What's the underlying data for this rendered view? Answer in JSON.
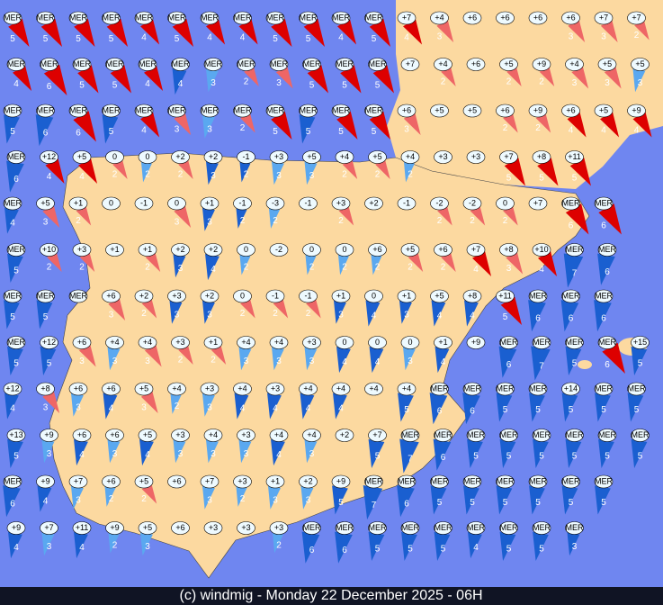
{
  "map": {
    "footer": "(c) windmig - Monday 22 December 2025 - 06H",
    "stations": [
      [
        [
          "MER",
          5,
          "#d00"
        ],
        [
          "MER",
          5,
          "#d00"
        ],
        [
          "MER",
          5,
          "#d00"
        ],
        [
          "MER",
          5,
          "#d00"
        ],
        [
          "MER",
          4,
          "#d00"
        ],
        [
          "MER",
          5,
          "#d00"
        ],
        [
          "MER",
          4,
          "#d00"
        ],
        [
          "MER",
          4,
          "#d00"
        ],
        [
          "MER",
          5,
          "#d00"
        ],
        [
          "MER",
          5,
          "#d00"
        ],
        [
          "MER",
          4,
          "#d00"
        ],
        [
          "MER",
          5,
          "#d00"
        ],
        [
          "+7",
          4,
          "#d00"
        ],
        [
          "+4",
          3,
          "#e66"
        ],
        [
          "+6"
        ],
        [
          "+6"
        ],
        [
          "+6"
        ],
        [
          "+6",
          3,
          "#e66"
        ],
        [
          "+7",
          3,
          "#e66"
        ],
        [
          "+7",
          2,
          "#e66"
        ]
      ],
      [
        [
          "MER",
          4,
          "#d00"
        ],
        [
          "MER",
          6,
          "#d00"
        ],
        [
          "MER",
          5,
          "#d00"
        ],
        [
          "MER",
          5,
          "#d00"
        ],
        [
          "MER",
          4,
          "#d00"
        ],
        [
          "MER",
          4,
          "#1a5fd0"
        ],
        [
          "MER",
          3,
          "#5aa8f0"
        ],
        [
          "MER",
          2,
          "#e66"
        ],
        [
          "MER",
          3,
          "#e66"
        ],
        [
          "MER",
          5,
          "#d00"
        ],
        [
          "MER",
          5,
          "#d00"
        ],
        [
          "MER",
          5,
          "#d00"
        ],
        [
          "+7"
        ],
        [
          "+4",
          2,
          "#e66"
        ],
        [
          "+6"
        ],
        [
          "+5",
          2,
          "#e66"
        ],
        [
          "+9",
          2,
          "#e66"
        ],
        [
          "+4",
          3,
          "#e66"
        ],
        [
          "+5",
          3,
          "#e66"
        ],
        [
          "+5",
          3,
          "#5aa8f0"
        ]
      ],
      [
        [
          "MER",
          5,
          "#1a5fd0"
        ],
        [
          "MER",
          6,
          "#1a5fd0"
        ],
        [
          "MER",
          6,
          "#d00"
        ],
        [
          "MER",
          5,
          "#1a5fd0"
        ],
        [
          "MER",
          4,
          "#d00"
        ],
        [
          "MER",
          3,
          "#e66"
        ],
        [
          "MER",
          3,
          "#5aa8f0"
        ],
        [
          "MER",
          2,
          "#e66"
        ],
        [
          "MER",
          5,
          "#d00"
        ],
        [
          "MER",
          5,
          "#1a5fd0"
        ],
        [
          "MER",
          5,
          "#d00"
        ],
        [
          "MER",
          5,
          "#d00"
        ],
        [
          "+6",
          3,
          "#e66"
        ],
        [
          "+5"
        ],
        [
          "+5"
        ],
        [
          "+6",
          2,
          "#e66"
        ],
        [
          "+9",
          2,
          "#e66"
        ],
        [
          "+6",
          4,
          "#d00"
        ],
        [
          "+5",
          4,
          "#d00"
        ],
        [
          "+9",
          4,
          "#d00"
        ]
      ],
      [
        [
          "MER",
          6,
          "#1a5fd0"
        ],
        [
          "+12",
          4,
          "#d00"
        ],
        [
          "+5",
          4,
          "#d00"
        ],
        [
          "0",
          2,
          "#e66"
        ],
        [
          "0",
          2,
          "#5aa8f0"
        ],
        [
          "+2",
          2,
          "#e66"
        ],
        [
          "+2",
          3,
          "#1a5fd0"
        ],
        [
          "-1",
          2,
          "#1a5fd0"
        ],
        [
          "+3",
          3,
          "#5aa8f0"
        ],
        [
          "+5",
          3,
          "#5aa8f0"
        ],
        [
          "+4",
          2,
          "#e66"
        ],
        [
          "+5",
          2,
          "#e66"
        ],
        [
          "+4",
          2,
          "#5aa8f0"
        ],
        [
          "+3"
        ],
        [
          "+3"
        ],
        [
          "+7",
          5,
          "#d00"
        ],
        [
          "+8",
          5,
          "#d00"
        ],
        [
          "+11",
          5,
          "#d00"
        ]
      ],
      [
        [
          "MER",
          4,
          "#1a5fd0"
        ],
        [
          "+5",
          3,
          "#e66"
        ],
        [
          "+1",
          2,
          "#e66"
        ],
        [
          "0"
        ],
        [
          "-1"
        ],
        [
          "0",
          3,
          "#e66"
        ],
        [
          "+1",
          3,
          "#1a5fd0"
        ],
        [
          "-1",
          2,
          "#1a5fd0"
        ],
        [
          "-3",
          2,
          "#5aa8f0"
        ],
        [
          "-1"
        ],
        [
          "+3",
          2,
          "#e66"
        ],
        [
          "+2"
        ],
        [
          "-1"
        ],
        [
          "-2",
          2,
          "#e66"
        ],
        [
          "-2",
          2,
          "#e66"
        ],
        [
          "0",
          2,
          "#e66"
        ],
        [
          "+7"
        ],
        [
          "MER",
          6,
          "#d00"
        ],
        [
          "MER",
          6,
          "#d00"
        ]
      ],
      [
        [
          "MER",
          5,
          "#1a5fd0"
        ],
        [
          "+10",
          2,
          "#e66"
        ],
        [
          "+3",
          2,
          "#e66"
        ],
        [
          "+1"
        ],
        [
          "+1",
          2,
          "#e66"
        ],
        [
          "+2",
          3,
          "#1a5fd0"
        ],
        [
          "+2",
          4,
          "#1a5fd0"
        ],
        [
          "0",
          2,
          "#5aa8f0"
        ],
        [
          "-2"
        ],
        [
          "0",
          2,
          "#5aa8f0"
        ],
        [
          "0",
          2,
          "#5aa8f0"
        ],
        [
          "+6",
          2,
          "#5aa8f0"
        ],
        [
          "+5",
          2,
          "#e66"
        ],
        [
          "+6",
          2,
          "#e66"
        ],
        [
          "+7",
          4,
          "#d00"
        ],
        [
          "+8",
          3,
          "#e66"
        ],
        [
          "+10",
          4,
          "#d00"
        ],
        [
          "MER",
          7,
          "#1a5fd0"
        ],
        [
          "MER",
          6,
          "#1a5fd0"
        ]
      ],
      [
        [
          "MER",
          5,
          "#1a5fd0"
        ],
        [
          "MER",
          5,
          "#1a5fd0"
        ],
        [
          "MER"
        ],
        [
          "+6",
          3,
          "#e66"
        ],
        [
          "+2",
          2,
          "#e66"
        ],
        [
          "+3",
          3,
          "#1a5fd0"
        ],
        [
          "+2",
          3,
          "#1a5fd0"
        ],
        [
          "0",
          2,
          "#e66"
        ],
        [
          "-1",
          2,
          "#e66"
        ],
        [
          "-1",
          2,
          "#e66"
        ],
        [
          "+1",
          3,
          "#1a5fd0"
        ],
        [
          "0",
          4,
          "#1a5fd0"
        ],
        [
          "+1",
          3,
          "#1a5fd0"
        ],
        [
          "+5",
          4,
          "#1a5fd0"
        ],
        [
          "+8",
          4,
          "#1a5fd0"
        ],
        [
          "+11",
          5,
          "#d00"
        ],
        [
          "MER",
          6,
          "#1a5fd0"
        ],
        [
          "MER",
          6,
          "#1a5fd0"
        ],
        [
          "MER",
          6,
          "#1a5fd0"
        ]
      ],
      [
        [
          "MER",
          5,
          "#1a5fd0"
        ],
        [
          "+12",
          5,
          "#1a5fd0"
        ],
        [
          "+6",
          3,
          "#e66"
        ],
        [
          "+4",
          3,
          "#5aa8f0"
        ],
        [
          "+4",
          3,
          "#e66"
        ],
        [
          "+3",
          2,
          "#e66"
        ],
        [
          "+1",
          2,
          "#e66"
        ],
        [
          "+4",
          3,
          "#5aa8f0"
        ],
        [
          "+4",
          3,
          "#5aa8f0"
        ],
        [
          "+3",
          3,
          "#5aa8f0"
        ],
        [
          "0",
          4,
          "#1a5fd0"
        ],
        [
          "0",
          4,
          "#1a5fd0"
        ],
        [
          "0",
          3,
          "#5aa8f0"
        ],
        [
          "+1",
          4,
          "#1a5fd0"
        ],
        [
          "+9"
        ],
        [
          "MER",
          6,
          "#1a5fd0"
        ],
        [
          "MER",
          7,
          "#1a5fd0"
        ],
        [
          "MER",
          5,
          "#1a5fd0"
        ],
        [
          "MER",
          6,
          "#d00"
        ],
        [
          "+15",
          5,
          "#1a5fd0"
        ]
      ],
      [
        [
          "+12",
          4,
          "#1a5fd0"
        ],
        [
          "+8",
          3,
          "#e66"
        ],
        [
          "+6",
          3,
          "#5aa8f0"
        ],
        [
          "+6",
          4,
          "#1a5fd0"
        ],
        [
          "+5",
          3,
          "#e66"
        ],
        [
          "+4",
          2,
          "#5aa8f0"
        ],
        [
          "+3",
          3,
          "#5aa8f0"
        ],
        [
          "+4",
          4,
          "#1a5fd0"
        ],
        [
          "+3",
          4,
          "#1a5fd0"
        ],
        [
          "+4",
          4,
          "#1a5fd0"
        ],
        [
          "+4",
          4,
          "#1a5fd0"
        ],
        [
          "+4"
        ],
        [
          "+4",
          5,
          "#1a5fd0"
        ],
        [
          "MER",
          6,
          "#1a5fd0"
        ],
        [
          "MER",
          6,
          "#1a5fd0"
        ],
        [
          "MER",
          5,
          "#1a5fd0"
        ],
        [
          "MER",
          5,
          "#1a5fd0"
        ],
        [
          "+14",
          5,
          "#1a5fd0"
        ],
        [
          "MER",
          5,
          "#1a5fd0"
        ],
        [
          "MER",
          5,
          "#1a5fd0"
        ]
      ],
      [
        [
          "+13",
          5,
          "#1a5fd0"
        ],
        [
          "+9",
          3,
          "#5aa8f0"
        ],
        [
          "+6",
          4,
          "#1a5fd0"
        ],
        [
          "+6",
          3,
          "#5aa8f0"
        ],
        [
          "+5",
          4,
          "#1a5fd0"
        ],
        [
          "+3",
          3,
          "#5aa8f0"
        ],
        [
          "+4",
          3,
          "#5aa8f0"
        ],
        [
          "+3",
          3,
          "#5aa8f0"
        ],
        [
          "+4",
          4,
          "#1a5fd0"
        ],
        [
          "+4",
          3,
          "#5aa8f0"
        ],
        [
          "+2"
        ],
        [
          "+7",
          5,
          "#1a5fd0"
        ],
        [
          "MER",
          7,
          "#1a5fd0"
        ],
        [
          "MER",
          6,
          "#1a5fd0"
        ],
        [
          "MER",
          5,
          "#1a5fd0"
        ],
        [
          "MER",
          5,
          "#1a5fd0"
        ],
        [
          "MER",
          5,
          "#1a5fd0"
        ],
        [
          "MER",
          5,
          "#1a5fd0"
        ],
        [
          "MER",
          5,
          "#1a5fd0"
        ],
        [
          "MER",
          5,
          "#1a5fd0"
        ]
      ],
      [
        [
          "MER",
          6,
          "#1a5fd0"
        ],
        [
          "+9",
          4,
          "#1a5fd0"
        ],
        [
          "+7",
          3,
          "#5aa8f0"
        ],
        [
          "+6",
          2,
          "#5aa8f0"
        ],
        [
          "+5",
          2,
          "#e66"
        ],
        [
          "+6"
        ],
        [
          "+7",
          3,
          "#5aa8f0"
        ],
        [
          "+3",
          2,
          "#5aa8f0"
        ],
        [
          "+1",
          3,
          "#5aa8f0"
        ],
        [
          "+2",
          3,
          "#5aa8f0"
        ],
        [
          "+9",
          5,
          "#1a5fd0"
        ],
        [
          "MER",
          7,
          "#1a5fd0"
        ],
        [
          "MER",
          6,
          "#1a5fd0"
        ],
        [
          "MER",
          5,
          "#1a5fd0"
        ],
        [
          "MER",
          5,
          "#1a5fd0"
        ],
        [
          "MER",
          5,
          "#1a5fd0"
        ],
        [
          "MER",
          5,
          "#1a5fd0"
        ],
        [
          "MER",
          5,
          "#1a5fd0"
        ],
        [
          "MER",
          5,
          "#1a5fd0"
        ]
      ],
      [
        [
          "+9",
          4,
          "#1a5fd0"
        ],
        [
          "+7",
          3,
          "#5aa8f0"
        ],
        [
          "+11",
          4,
          "#1a5fd0"
        ],
        [
          "+9",
          2,
          "#5aa8f0"
        ],
        [
          "+5",
          3,
          "#5aa8f0"
        ],
        [
          "+6"
        ],
        [
          "+3"
        ],
        [
          "+3"
        ],
        [
          "+3",
          2,
          "#5aa8f0"
        ],
        [
          "MER",
          6,
          "#1a5fd0"
        ],
        [
          "MER",
          6,
          "#1a5fd0"
        ],
        [
          "MER",
          5,
          "#1a5fd0"
        ],
        [
          "MER",
          5,
          "#1a5fd0"
        ],
        [
          "MER",
          5,
          "#1a5fd0"
        ],
        [
          "MER",
          4,
          "#1a5fd0"
        ],
        [
          "MER",
          5,
          "#1a5fd0"
        ],
        [
          "MER",
          5,
          "#1a5fd0"
        ],
        [
          "MER",
          3,
          "#1a5fd0"
        ]
      ]
    ]
  }
}
